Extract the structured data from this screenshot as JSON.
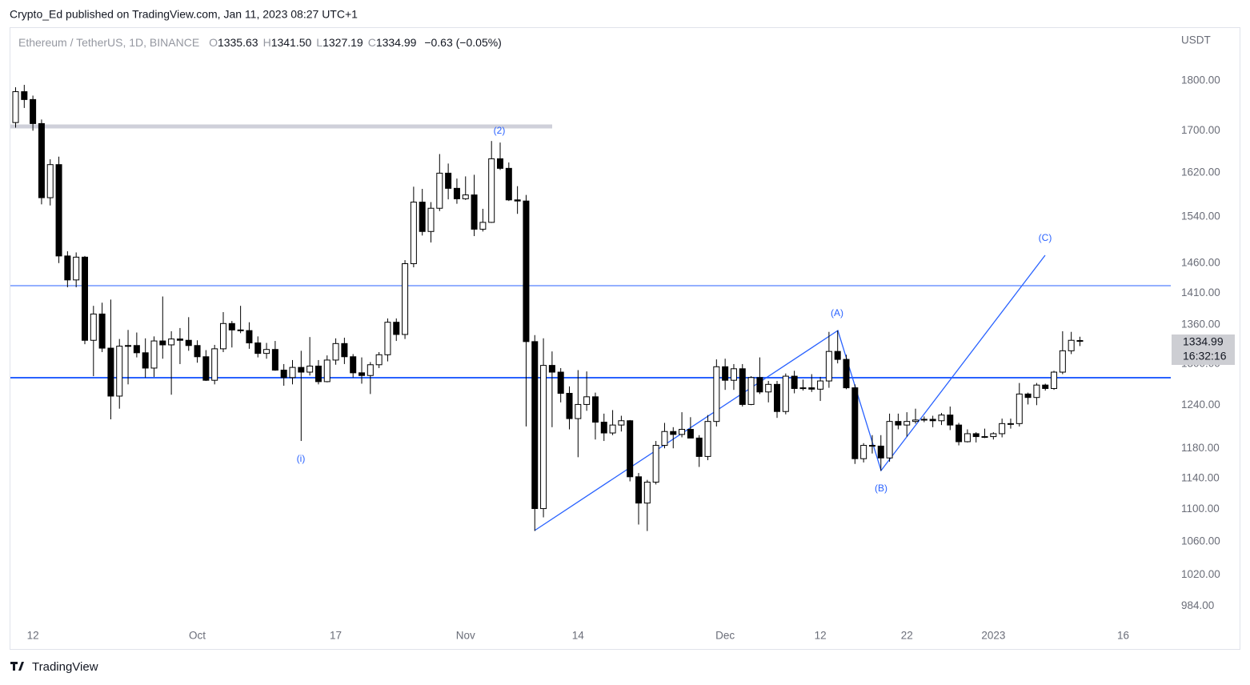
{
  "header": {
    "byline": "Crypto_Ed published on TradingView.com, Jan 11, 2023 08:27 UTC+1"
  },
  "footer": {
    "brand": "TradingView"
  },
  "chart_data": {
    "type": "candlestick",
    "title": "Ethereum / TetherUS, 1D, BINANCE",
    "ohlc_legend": [
      {
        "key": "O",
        "value": "1335.63"
      },
      {
        "key": "H",
        "value": "1341.50"
      },
      {
        "key": "L",
        "value": "1327.19"
      },
      {
        "key": "C",
        "value": "1334.99"
      }
    ],
    "change": "−0.63 (−0.05%)",
    "currency": "USDT",
    "last_price": {
      "price": "1334.99",
      "countdown": "16:32:16"
    },
    "up_color": "#ffffff",
    "down_color": "#000000",
    "border_color": "#000000",
    "log_scale": true,
    "grid": false,
    "open": [
      1716,
      1778,
      1762,
      1714,
      1574,
      1635,
      1472,
      1432,
      1470,
      1336,
      1377,
      1324,
      1253,
      1327,
      1328,
      1317,
      1294,
      1335,
      1329,
      1338,
      1336,
      1328,
      1311,
      1276,
      1323,
      1362,
      1352,
      1351,
      1332,
      1316,
      1322,
      1291,
      1280,
      1295,
      1288,
      1297,
      1274,
      1306,
      1331,
      1311,
      1287,
      1283,
      1299,
      1314,
      1364,
      1345,
      1459,
      1566,
      1514,
      1555,
      1619,
      1591,
      1572,
      1579,
      1518,
      1530,
      1646,
      1628,
      1570,
      1568,
      1334,
      1101,
      1298,
      1288,
      1257,
      1221,
      1241,
      1252,
      1216,
      1201,
      1212,
      1218,
      1142,
      1108,
      1135,
      1184,
      1203,
      1199,
      1206,
      1194,
      1169,
      1217,
      1296,
      1276,
      1293,
      1241,
      1280,
      1259,
      1270,
      1231,
      1282,
      1264,
      1265,
      1263,
      1275,
      1319,
      1307,
      1265,
      1166,
      1184,
      1183,
      1167,
      1217,
      1212,
      1217,
      1219,
      1220,
      1218,
      1226,
      1212,
      1189,
      1200,
      1196,
      1196,
      1200,
      1214,
      1214,
      1256,
      1251,
      1269,
      1264,
      1288,
      1320,
      1335.63
    ],
    "high": [
      1787,
      1792,
      1770,
      1722,
      1645,
      1650,
      1480,
      1478,
      1472,
      1390,
      1395,
      1400,
      1338,
      1352,
      1348,
      1339,
      1342,
      1405,
      1350,
      1355,
      1372,
      1336,
      1321,
      1329,
      1380,
      1366,
      1390,
      1364,
      1342,
      1332,
      1335,
      1300,
      1306,
      1320,
      1341,
      1306,
      1313,
      1339,
      1340,
      1315,
      1310,
      1303,
      1318,
      1370,
      1370,
      1465,
      1594,
      1590,
      1566,
      1655,
      1637,
      1609,
      1613,
      1616,
      1554,
      1680,
      1677,
      1639,
      1595,
      1579,
      1344,
      1339,
      1319,
      1294,
      1267,
      1291,
      1289,
      1258,
      1228,
      1233,
      1225,
      1219,
      1147,
      1138,
      1190,
      1215,
      1209,
      1230,
      1223,
      1198,
      1226,
      1307,
      1308,
      1300,
      1300,
      1282,
      1310,
      1275,
      1275,
      1286,
      1290,
      1277,
      1285,
      1281,
      1349,
      1351,
      1314,
      1270,
      1187,
      1198,
      1198,
      1228,
      1228,
      1230,
      1235,
      1224,
      1225,
      1229,
      1238,
      1215,
      1206,
      1202,
      1207,
      1202,
      1221,
      1221,
      1272,
      1258,
      1272,
      1271,
      1290,
      1350,
      1349,
      1341.5
    ],
    "low": [
      1706,
      1745,
      1700,
      1562,
      1560,
      1460,
      1420,
      1420,
      1330,
      1282,
      1318,
      1220,
      1235,
      1270,
      1310,
      1280,
      1281,
      1308,
      1255,
      1300,
      1320,
      1302,
      1275,
      1270,
      1318,
      1325,
      1347,
      1323,
      1310,
      1308,
      1290,
      1268,
      1270,
      1190,
      1283,
      1270,
      1273,
      1299,
      1300,
      1280,
      1271,
      1256,
      1294,
      1304,
      1335,
      1338,
      1453,
      1507,
      1495,
      1550,
      1571,
      1563,
      1570,
      1506,
      1514,
      1529,
      1625,
      1568,
      1545,
      1210,
      1073,
      1090,
      1209,
      1244,
      1206,
      1168,
      1232,
      1192,
      1190,
      1198,
      1203,
      1136,
      1081,
      1073,
      1132,
      1180,
      1180,
      1195,
      1196,
      1155,
      1164,
      1210,
      1262,
      1262,
      1238,
      1240,
      1256,
      1244,
      1222,
      1227,
      1257,
      1261,
      1259,
      1246,
      1265,
      1301,
      1263,
      1159,
      1161,
      1173,
      1150,
      1162,
      1206,
      1196,
      1214,
      1216,
      1209,
      1212,
      1205,
      1184,
      1188,
      1188,
      1194,
      1192,
      1195,
      1207,
      1210,
      1241,
      1240,
      1261,
      1262,
      1285,
      1315,
      1327.19
    ],
    "close": [
      1778,
      1762,
      1714,
      1574,
      1635,
      1472,
      1432,
      1470,
      1336,
      1377,
      1324,
      1253,
      1327,
      1328,
      1317,
      1294,
      1335,
      1329,
      1338,
      1336,
      1328,
      1311,
      1276,
      1323,
      1362,
      1352,
      1351,
      1332,
      1316,
      1322,
      1291,
      1280,
      1295,
      1288,
      1297,
      1274,
      1306,
      1331,
      1311,
      1287,
      1283,
      1299,
      1314,
      1364,
      1345,
      1459,
      1566,
      1514,
      1555,
      1619,
      1591,
      1572,
      1579,
      1518,
      1530,
      1646,
      1628,
      1570,
      1568,
      1334,
      1101,
      1298,
      1288,
      1257,
      1221,
      1241,
      1252,
      1216,
      1201,
      1212,
      1218,
      1142,
      1108,
      1135,
      1184,
      1203,
      1199,
      1206,
      1194,
      1169,
      1217,
      1296,
      1276,
      1293,
      1241,
      1280,
      1259,
      1270,
      1231,
      1282,
      1264,
      1265,
      1263,
      1275,
      1319,
      1307,
      1265,
      1166,
      1184,
      1183,
      1167,
      1217,
      1212,
      1217,
      1219,
      1220,
      1218,
      1226,
      1212,
      1189,
      1200,
      1196,
      1196,
      1200,
      1214,
      1214,
      1256,
      1251,
      1269,
      1264,
      1288,
      1320,
      1336,
      1334.99
    ],
    "xlim": [
      -0.6,
      133.5
    ],
    "xticks": [
      {
        "value": 2,
        "label": "12"
      },
      {
        "value": 21,
        "label": "Oct"
      },
      {
        "value": 37,
        "label": "17"
      },
      {
        "value": 52,
        "label": "Nov"
      },
      {
        "value": 65,
        "label": "14"
      },
      {
        "value": 82,
        "label": "Dec"
      },
      {
        "value": 93,
        "label": "12"
      },
      {
        "value": 103,
        "label": "22"
      },
      {
        "value": 113,
        "label": "2023"
      },
      {
        "value": 128,
        "label": "16"
      }
    ],
    "ylim": [
      964,
      1913
    ],
    "yticks": [
      {
        "value": 984,
        "label": "984.00"
      },
      {
        "value": 1020,
        "label": "1020.00"
      },
      {
        "value": 1060,
        "label": "1060.00"
      },
      {
        "value": 1100,
        "label": "1100.00"
      },
      {
        "value": 1140,
        "label": "1140.00"
      },
      {
        "value": 1180,
        "label": "1180.00"
      },
      {
        "value": 1240,
        "label": "1240.00"
      },
      {
        "value": 1300,
        "label": "1300.00"
      },
      {
        "value": 1360,
        "label": "1360.00"
      },
      {
        "value": 1410,
        "label": "1410.00"
      },
      {
        "value": 1460,
        "label": "1460.00"
      },
      {
        "value": 1540,
        "label": "1540.00"
      },
      {
        "value": 1620,
        "label": "1620.00"
      },
      {
        "value": 1700,
        "label": "1700.00"
      },
      {
        "value": 1800,
        "label": "1800.00"
      }
    ],
    "annotations": [
      {
        "text": "(2)"
      },
      {
        "text": "(i)"
      },
      {
        "text": "(A)"
      },
      {
        "text": "(B)"
      },
      {
        "text": "(C)"
      }
    ]
  }
}
